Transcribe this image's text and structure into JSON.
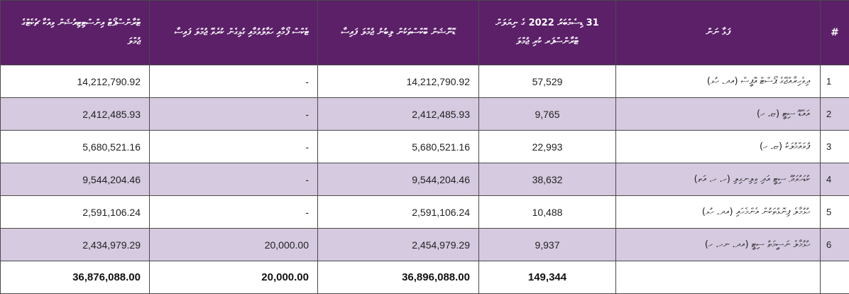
{
  "table": {
    "headers": {
      "col1": "ޓްރާންސްޕޯޓް އިންސްޓިޓިއުޝަން ވިއްކާ ޗެކެޓްގެ ޖުމްލަ",
      "col2": "ޓެކްސް ފޯމާއި ހަވާލުވުމާއި ގުޅިގެން ކުރެވޭ ޖުމްލަ ފައިސާ",
      "col3": "ޑޮނޭޝަން ބޮކްސްތަކުން ލިބުނު ޖުމްލަ ފައިސާ",
      "col4": "31 ޑިސެމްބަރު 2022 ގެ ނިޔަލަށް ޓްރާންސްފަރ ކުރި ޖުމްލަ",
      "col5": "ފަޅާ ނަން",
      "index": "#"
    },
    "rows": [
      {
        "index": "1",
        "name": "ދިވެހިރާއްޖޭގެ ޕޯސްޓް އޮފީސް (އދ. ހުޅ)",
        "col4": "57,529",
        "col3": "14,212,790.92",
        "col2": "-",
        "col1": "14,212,790.92"
      },
      {
        "index": "2",
        "name": "އައްޑޫ ސިޓީ (ޏ. ހ)",
        "col4": "9,765",
        "col3": "2,412,485.93",
        "col2": "-",
        "col1": "2,412,485.93"
      },
      {
        "index": "3",
        "name": "ފުވައްމުލަކު (ޏ. ހ)",
        "col4": "22,993",
        "col3": "5,680,521.16",
        "col2": "-",
        "col1": "5,680,521.16"
      },
      {
        "index": "4",
        "name": "ކުޑަހުވަދޫ ސިޓީ އަދި ވިލިނގިލި (ހ. ހ. އަތ)",
        "col4": "38,632",
        "col3": "9,544,204.46",
        "col2": "-",
        "col1": "9,544,204.46"
      },
      {
        "index": "5",
        "name": "ހުޅުމާލެ ފިނޮޅުތަކުން އެންމެހައި (އދ. ހުޅ)",
        "col4": "10,488",
        "col3": "2,591,106.24",
        "col2": "-",
        "col1": "2,591,106.24"
      },
      {
        "index": "6",
        "name": "ހުޅުމާލެ ނަސީމަތު ސިޓީ (އދ. ނހ. ހ)",
        "col4": "9,937",
        "col3": "2,454,979.29",
        "col2": "20,000.00",
        "col1": "2,434,979.29"
      }
    ],
    "totals": {
      "col4": "149,344",
      "col3": "36,896,088.00",
      "col2": "20,000.00",
      "col1": "36,876,088.00"
    }
  }
}
